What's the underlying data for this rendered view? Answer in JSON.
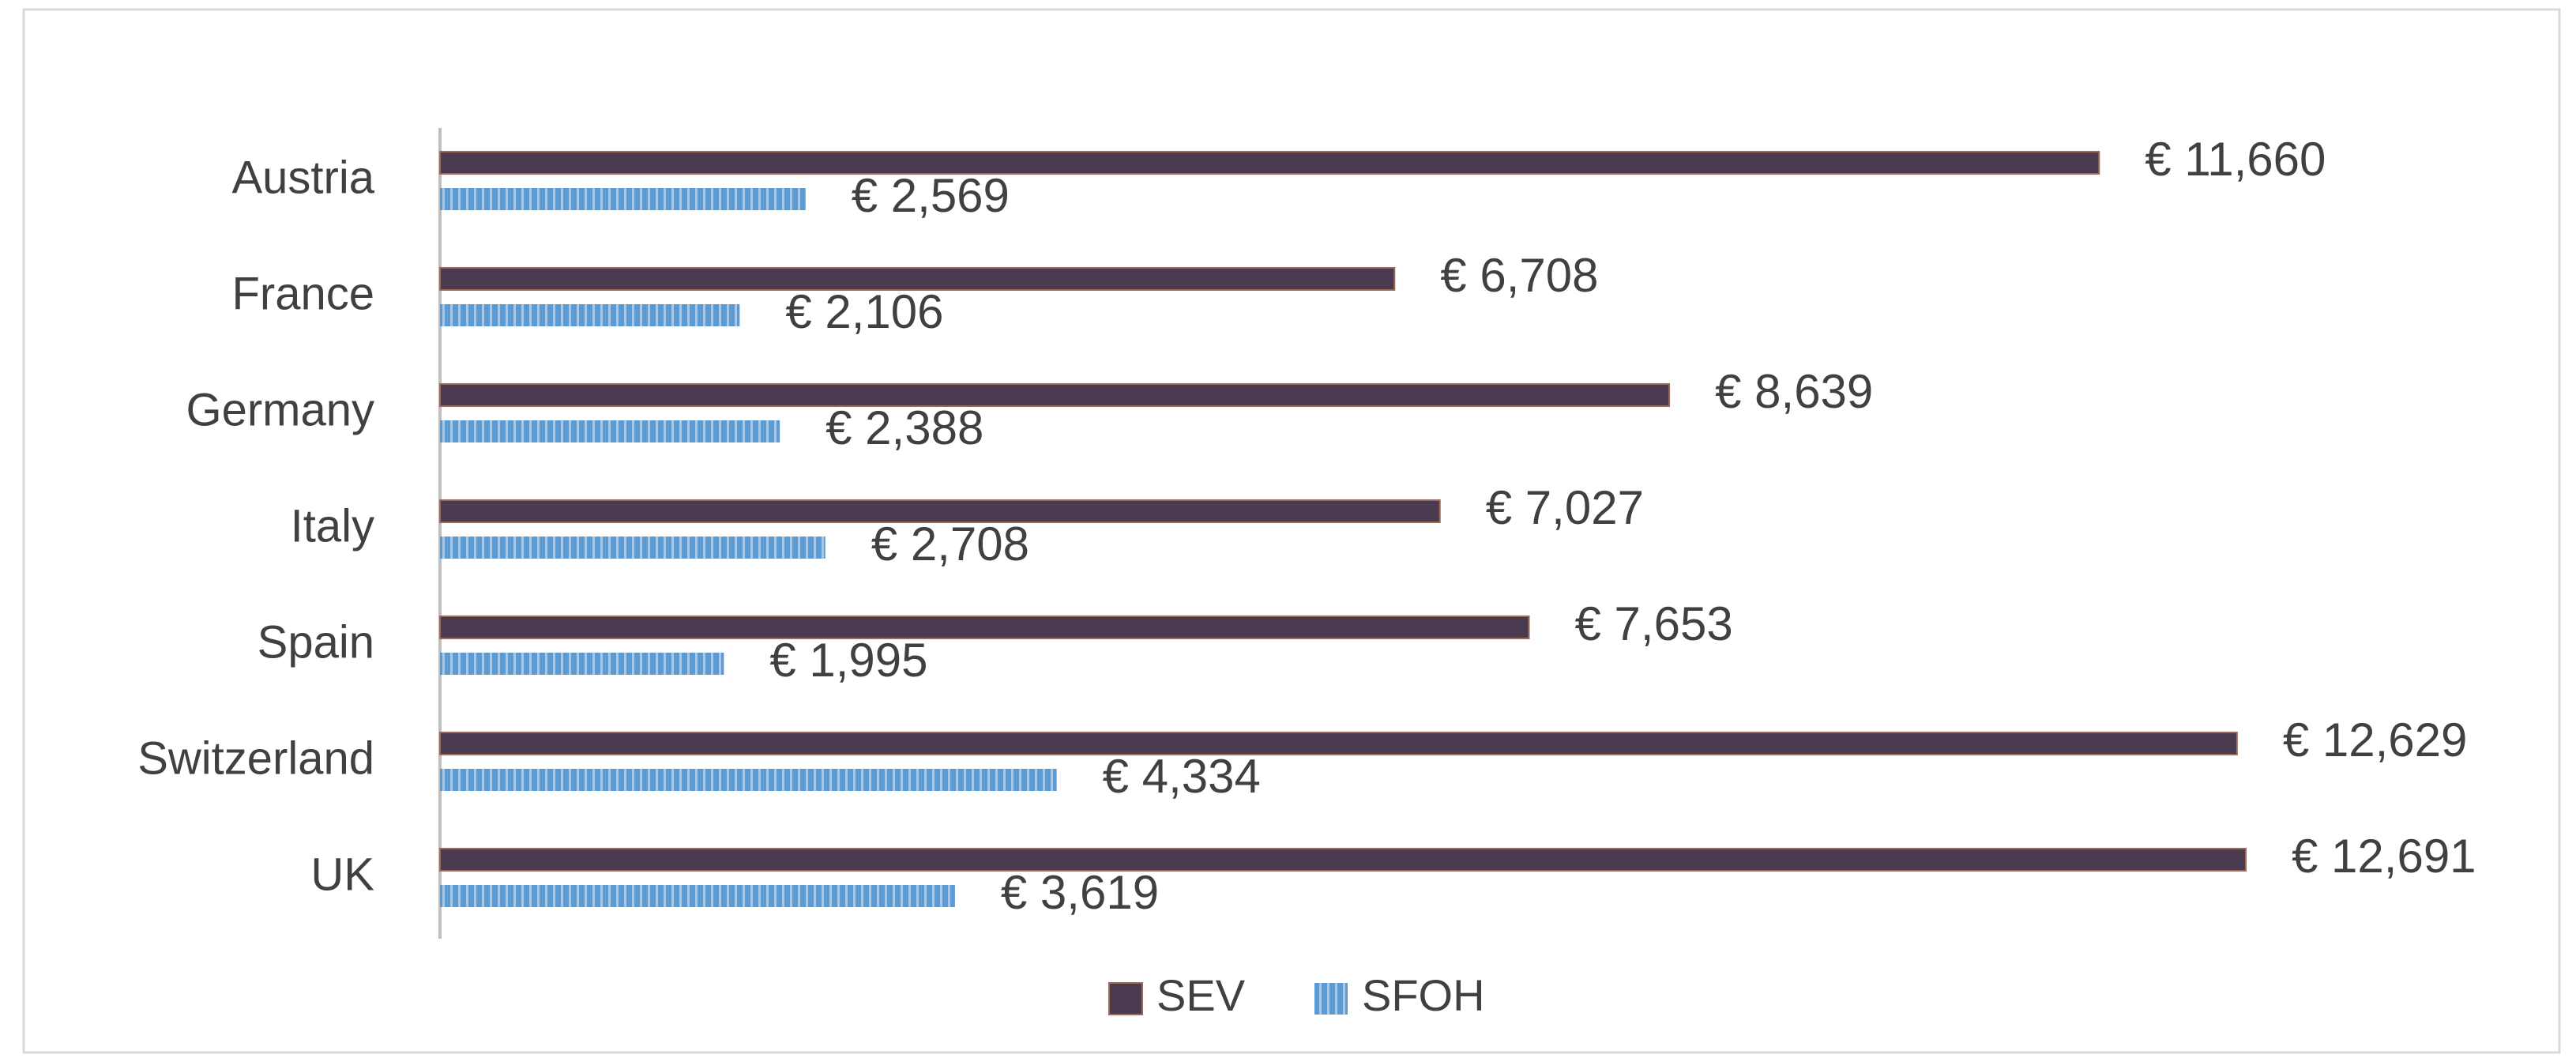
{
  "chart_data": {
    "type": "bar",
    "orientation": "horizontal",
    "categories": [
      "Austria",
      "France",
      "Germany",
      "Italy",
      "Spain",
      "Switzerland",
      "UK"
    ],
    "series": [
      {
        "name": "SEV",
        "color": "#4b3b50",
        "values": [
          11660,
          6708,
          8639,
          7027,
          7653,
          12629,
          12691
        ],
        "value_labels": [
          "€ 11,660",
          "€ 6,708",
          "€ 8,639",
          "€ 7,027",
          "€ 7,653",
          "€ 12,629",
          "€ 12,691"
        ]
      },
      {
        "name": "SFOH",
        "color": "#5b9bd5",
        "values": [
          2569,
          2106,
          2388,
          2708,
          1995,
          4334,
          3619
        ],
        "value_labels": [
          "€ 2,569",
          "€ 2,106",
          "€ 2,388",
          "€ 2,708",
          "€ 1,995",
          "€ 4,334",
          "€ 3,619"
        ]
      }
    ],
    "legend": "bottom"
  }
}
